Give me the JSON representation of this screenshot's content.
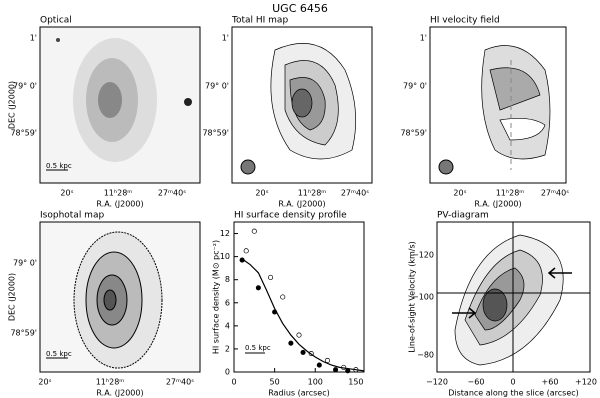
{
  "figure_title": "UGC 6456",
  "image_panels": [
    {
      "title": "Optical",
      "xlabel": "R.A. (J2000)",
      "ylabel": "DEC (J2000)",
      "xticks": [
        "20ˢ",
        "11ʰ28ᵐ",
        "27ᵐ40ˢ"
      ],
      "yticks": [
        "1'",
        "79° 0'",
        "78°59'"
      ],
      "scale_label": "0.5 kpc"
    },
    {
      "title": "Total HI map",
      "xlabel": "R.A. (J2000)",
      "xticks": [
        "20ˢ",
        "11ʰ28ᵐ",
        "27ᵐ40ˢ"
      ],
      "yticks": [
        "1'",
        "79° 0'",
        "78°59'"
      ]
    },
    {
      "title": "HI velocity field",
      "xlabel": "R.A. (J2000)",
      "xticks": [
        "20ˢ",
        "11ʰ28ᵐ",
        "27ᵐ40ˢ"
      ],
      "yticks": [
        "1'",
        "79° 0'",
        "78°59'"
      ]
    },
    {
      "title": "Isophotal map",
      "xlabel": "R.A. (J2000)",
      "ylabel": "DEC (J2000)",
      "xticks": [
        "20ˢ",
        "11ʰ28ᵐ",
        "27ᵐ40ˢ"
      ],
      "yticks": [
        "79° 0'",
        "78°59'"
      ],
      "scale_label": "0.5 kpc"
    },
    {
      "title": "PV-diagram",
      "xlabel": "Distance along the slice (arcsec)",
      "ylabel": "Line-of-sight Velocity (km/s)",
      "xticks": [
        "−120",
        "−60",
        "0",
        "+60",
        "+120"
      ],
      "yticks": [
        "−120",
        "−100",
        "−80"
      ]
    }
  ],
  "chart_data": {
    "type": "scatter",
    "title": "HI surface density profile",
    "xlabel": "Radius (arcsec)",
    "ylabel": "HI surface density (M⊙ pc⁻²)",
    "annotation": "0.5 kpc",
    "xlim": [
      0,
      160
    ],
    "ylim": [
      0,
      13
    ],
    "xticks": [
      0,
      50,
      100,
      150
    ],
    "yticks": [
      0,
      2,
      4,
      6,
      8,
      10,
      12
    ],
    "series": [
      {
        "style": "filled-circle",
        "color": "#000000",
        "x": [
          10,
          30,
          50,
          70,
          85,
          105,
          125,
          140
        ],
        "values": [
          9.7,
          7.3,
          5.2,
          2.5,
          1.7,
          0.6,
          0.2,
          0.1
        ]
      },
      {
        "style": "open-circle",
        "color": "#000000",
        "x": [
          15,
          25,
          45,
          60,
          80,
          95,
          115,
          135,
          150
        ],
        "values": [
          10.5,
          12.2,
          8.2,
          6.5,
          3.2,
          1.6,
          1.0,
          0.4,
          0.2
        ]
      },
      {
        "style": "line",
        "color": "#000000",
        "x": [
          10,
          20,
          30,
          40,
          50,
          60,
          70,
          80,
          90,
          100,
          110,
          120,
          130,
          140,
          150,
          160
        ],
        "values": [
          9.8,
          9.3,
          8.6,
          7.1,
          5.5,
          4.2,
          3.2,
          2.4,
          1.8,
          1.3,
          0.9,
          0.6,
          0.4,
          0.3,
          0.2,
          0.1
        ]
      }
    ]
  }
}
